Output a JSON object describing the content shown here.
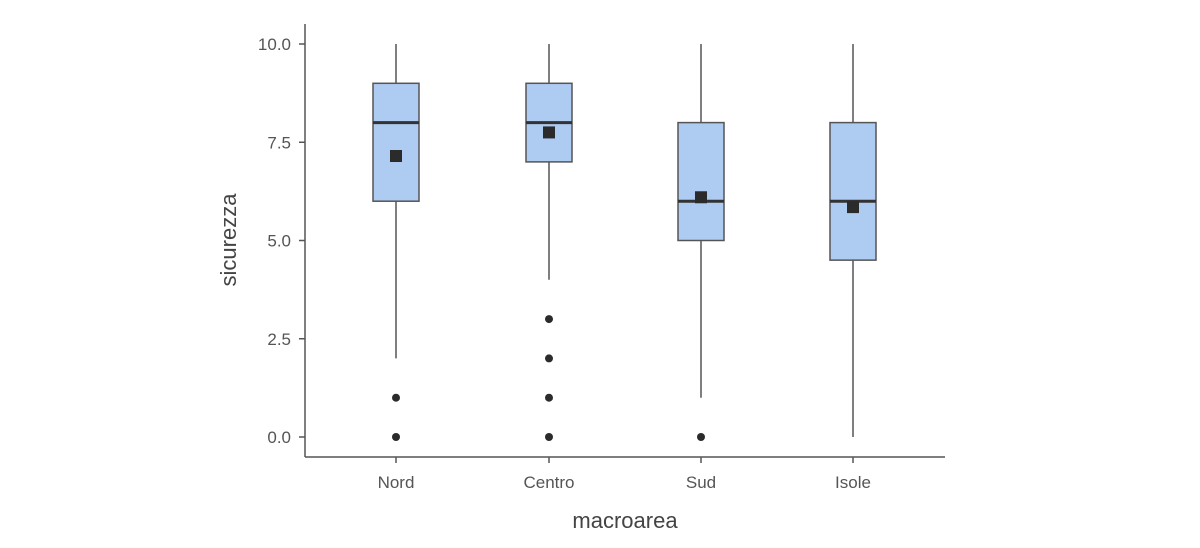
{
  "chart_data": {
    "type": "boxplot",
    "title": "",
    "xlabel": "macroarea",
    "ylabel": "sicurezza",
    "ylim": [
      0,
      10
    ],
    "yticks": [
      "0.0",
      "2.5",
      "5.0",
      "7.5",
      "10.0"
    ],
    "grid": false,
    "categories": [
      "Nord",
      "Centro",
      "Sud",
      "Isole"
    ],
    "boxes": [
      {
        "category": "Nord",
        "whisker_low": 2,
        "q1": 6,
        "median": 8,
        "q3": 9,
        "whisker_high": 10,
        "mean": 7.15,
        "outliers": [
          0,
          1
        ]
      },
      {
        "category": "Centro",
        "whisker_low": 4,
        "q1": 7,
        "median": 8,
        "q3": 9,
        "whisker_high": 10,
        "mean": 7.75,
        "outliers": [
          0,
          1,
          2,
          3
        ]
      },
      {
        "category": "Sud",
        "whisker_low": 1,
        "q1": 5,
        "median": 6,
        "q3": 8,
        "whisker_high": 10,
        "mean": 6.1,
        "outliers": [
          0
        ]
      },
      {
        "category": "Isole",
        "whisker_low": 0,
        "q1": 4.5,
        "median": 6,
        "q3": 8,
        "whisker_high": 10,
        "mean": 5.85,
        "outliers": []
      }
    ],
    "colors": {
      "box_fill": "#aecbf1",
      "box_stroke": "#555555",
      "median": "#333333",
      "mean_marker": "#2b2b2b",
      "outlier": "#2b2b2b",
      "axis": "#555555"
    }
  }
}
